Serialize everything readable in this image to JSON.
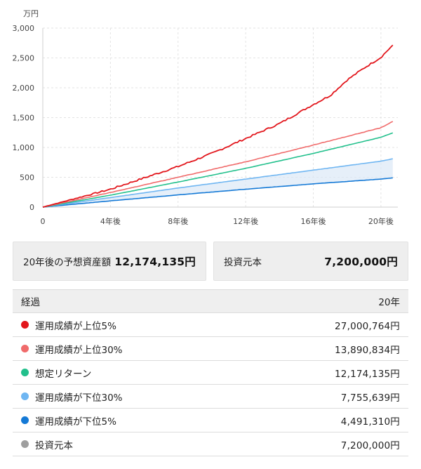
{
  "chart_data": {
    "type": "line",
    "y_unit_label": "万円",
    "ylim": [
      0,
      3000
    ],
    "xlim": [
      0,
      21
    ],
    "y_ticks": [
      0,
      500,
      1000,
      1500,
      2000,
      2500,
      3000
    ],
    "y_tick_labels": [
      "0",
      "500",
      "1,000",
      "1,500",
      "2,000",
      "2,500",
      "3,000"
    ],
    "x_ticks": [
      0,
      4,
      8,
      12,
      16,
      20
    ],
    "x_tick_labels": [
      "0",
      "4年後",
      "8年後",
      "12年後",
      "16年後",
      "20年後"
    ],
    "grid": true,
    "shaded_band": {
      "lower_series": 4,
      "upper_series": 3
    },
    "series": [
      {
        "name": "運用成績が上位5%",
        "color": "#e2161c",
        "jitter": 14,
        "points": [
          [
            0,
            0
          ],
          [
            4,
            300
          ],
          [
            8,
            680
          ],
          [
            10,
            900
          ],
          [
            12,
            1150
          ],
          [
            14,
            1400
          ],
          [
            16,
            1720
          ],
          [
            17,
            1870
          ],
          [
            18,
            2130
          ],
          [
            19,
            2330
          ],
          [
            20,
            2510
          ],
          [
            20.7,
            2715
          ]
        ]
      },
      {
        "name": "運用成績が上位30%",
        "color": "#f06b6b",
        "jitter": 3,
        "points": [
          [
            0,
            0
          ],
          [
            4,
            245
          ],
          [
            8,
            500
          ],
          [
            12,
            760
          ],
          [
            16,
            1040
          ],
          [
            20,
            1330
          ],
          [
            20.7,
            1435
          ]
        ]
      },
      {
        "name": "想定リターン",
        "color": "#22c08c",
        "jitter": 1,
        "points": [
          [
            0,
            0
          ],
          [
            4,
            200
          ],
          [
            8,
            420
          ],
          [
            12,
            650
          ],
          [
            16,
            900
          ],
          [
            20,
            1170
          ],
          [
            20.7,
            1245
          ]
        ]
      },
      {
        "name": "運用成績が下位30%",
        "color": "#6fb6f2",
        "jitter": 1,
        "points": [
          [
            0,
            0
          ],
          [
            4,
            160
          ],
          [
            8,
            320
          ],
          [
            12,
            470
          ],
          [
            16,
            620
          ],
          [
            20,
            770
          ],
          [
            20.7,
            810
          ]
        ]
      },
      {
        "name": "運用成績が下位5%",
        "color": "#1479d6",
        "jitter": 1,
        "points": [
          [
            0,
            0
          ],
          [
            4,
            105
          ],
          [
            8,
            205
          ],
          [
            12,
            300
          ],
          [
            16,
            390
          ],
          [
            20,
            470
          ],
          [
            20.7,
            490
          ]
        ]
      }
    ]
  },
  "summary": {
    "projected_label": "20年後の予想資産額",
    "projected_value": "12,174,135円",
    "principal_label": "投資元本",
    "principal_value": "7,200,000円"
  },
  "table": {
    "header_left": "経過",
    "header_right": "20年",
    "rows": [
      {
        "label": "運用成績が上位5%",
        "value": "27,000,764円",
        "color": "#e2161c"
      },
      {
        "label": "運用成績が上位30%",
        "value": "13,890,834円",
        "color": "#f06b6b"
      },
      {
        "label": "想定リターン",
        "value": "12,174,135円",
        "color": "#22c08c"
      },
      {
        "label": "運用成績が下位30%",
        "value": "7,755,639円",
        "color": "#6fb6f2"
      },
      {
        "label": "運用成績が下位5%",
        "value": "4,491,310円",
        "color": "#1479d6"
      },
      {
        "label": "投資元本",
        "value": "7,200,000円",
        "color": "#9e9e9e"
      }
    ]
  }
}
